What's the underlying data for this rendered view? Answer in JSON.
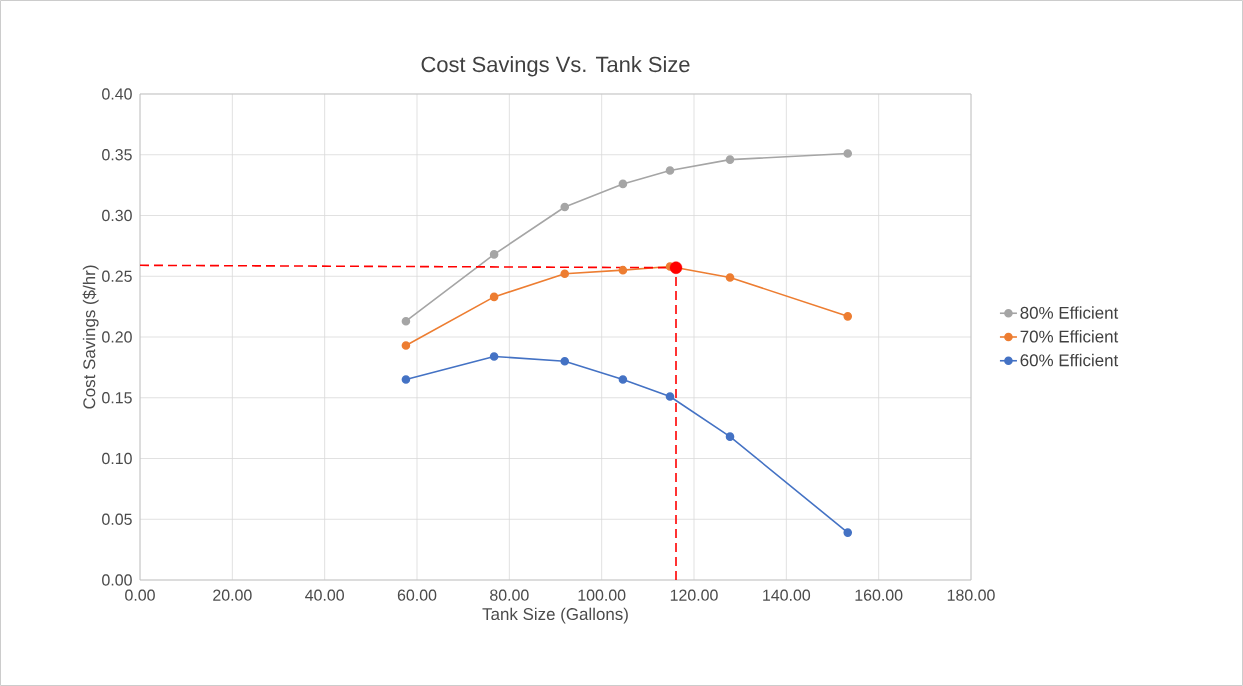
{
  "chart_data": {
    "type": "line",
    "title": "Cost Savings Vs. Tank Size",
    "xlabel": "Tank Size (Gallons)",
    "ylabel": "Cost Savings ($/hr)",
    "xlim": [
      0,
      180
    ],
    "ylim": [
      0,
      0.4
    ],
    "xticks": [
      {
        "value": 0,
        "label": "0.00"
      },
      {
        "value": 20,
        "label": "20.00"
      },
      {
        "value": 40,
        "label": "40.00"
      },
      {
        "value": 60,
        "label": "60.00"
      },
      {
        "value": 80,
        "label": "80.00"
      },
      {
        "value": 100,
        "label": "100.00"
      },
      {
        "value": 120,
        "label": "120.00"
      },
      {
        "value": 140,
        "label": "140.00"
      },
      {
        "value": 160,
        "label": "160.00"
      },
      {
        "value": 180,
        "label": "180.00"
      }
    ],
    "yticks": [
      {
        "value": 0,
        "label": "0.00"
      },
      {
        "value": 0.05,
        "label": "0.05"
      },
      {
        "value": 0.1,
        "label": "0.10"
      },
      {
        "value": 0.15,
        "label": "0.15"
      },
      {
        "value": 0.2,
        "label": "0.20"
      },
      {
        "value": 0.25,
        "label": "0.25"
      },
      {
        "value": 0.3,
        "label": "0.30"
      },
      {
        "value": 0.35,
        "label": "0.35"
      },
      {
        "value": 0.4,
        "label": "0.40"
      }
    ],
    "grid": true,
    "legend": "right",
    "marker": "circle",
    "line_style": "solid",
    "series": [
      {
        "name": "80% Efficient",
        "color": "#a5a5a5",
        "x": [
          57.6,
          76.7,
          92.0,
          104.6,
          114.8,
          127.8,
          153.3
        ],
        "values": [
          0.213,
          0.268,
          0.307,
          0.326,
          0.337,
          0.346,
          0.351
        ]
      },
      {
        "name": "70% Efficient",
        "color": "#ed7d31",
        "x": [
          57.6,
          76.7,
          92.0,
          104.6,
          114.8,
          127.8,
          153.3
        ],
        "values": [
          0.193,
          0.233,
          0.252,
          0.255,
          0.258,
          0.249,
          0.217
        ]
      },
      {
        "name": "60% Efficient",
        "color": "#4472c4",
        "x": [
          57.6,
          76.7,
          92.0,
          104.6,
          114.8,
          127.8,
          153.3
        ],
        "values": [
          0.165,
          0.184,
          0.18,
          0.165,
          0.151,
          0.118,
          0.039
        ]
      },
      {
        "type": "line",
        "color": "#ff0000",
        "marker": "none",
        "line_style": "dashed",
        "x": [
          0,
          116.1
        ],
        "values": [
          0.259,
          0.257
        ]
      },
      {
        "type": "line",
        "color": "#ff0000",
        "marker": "none",
        "line_style": "dashed",
        "x": [
          116.1,
          116.1
        ],
        "values": [
          0,
          0.257
        ]
      },
      {
        "type": "scatter",
        "color": "#ff0000",
        "x": [
          116.1
        ],
        "values": [
          0.257
        ]
      }
    ]
  }
}
